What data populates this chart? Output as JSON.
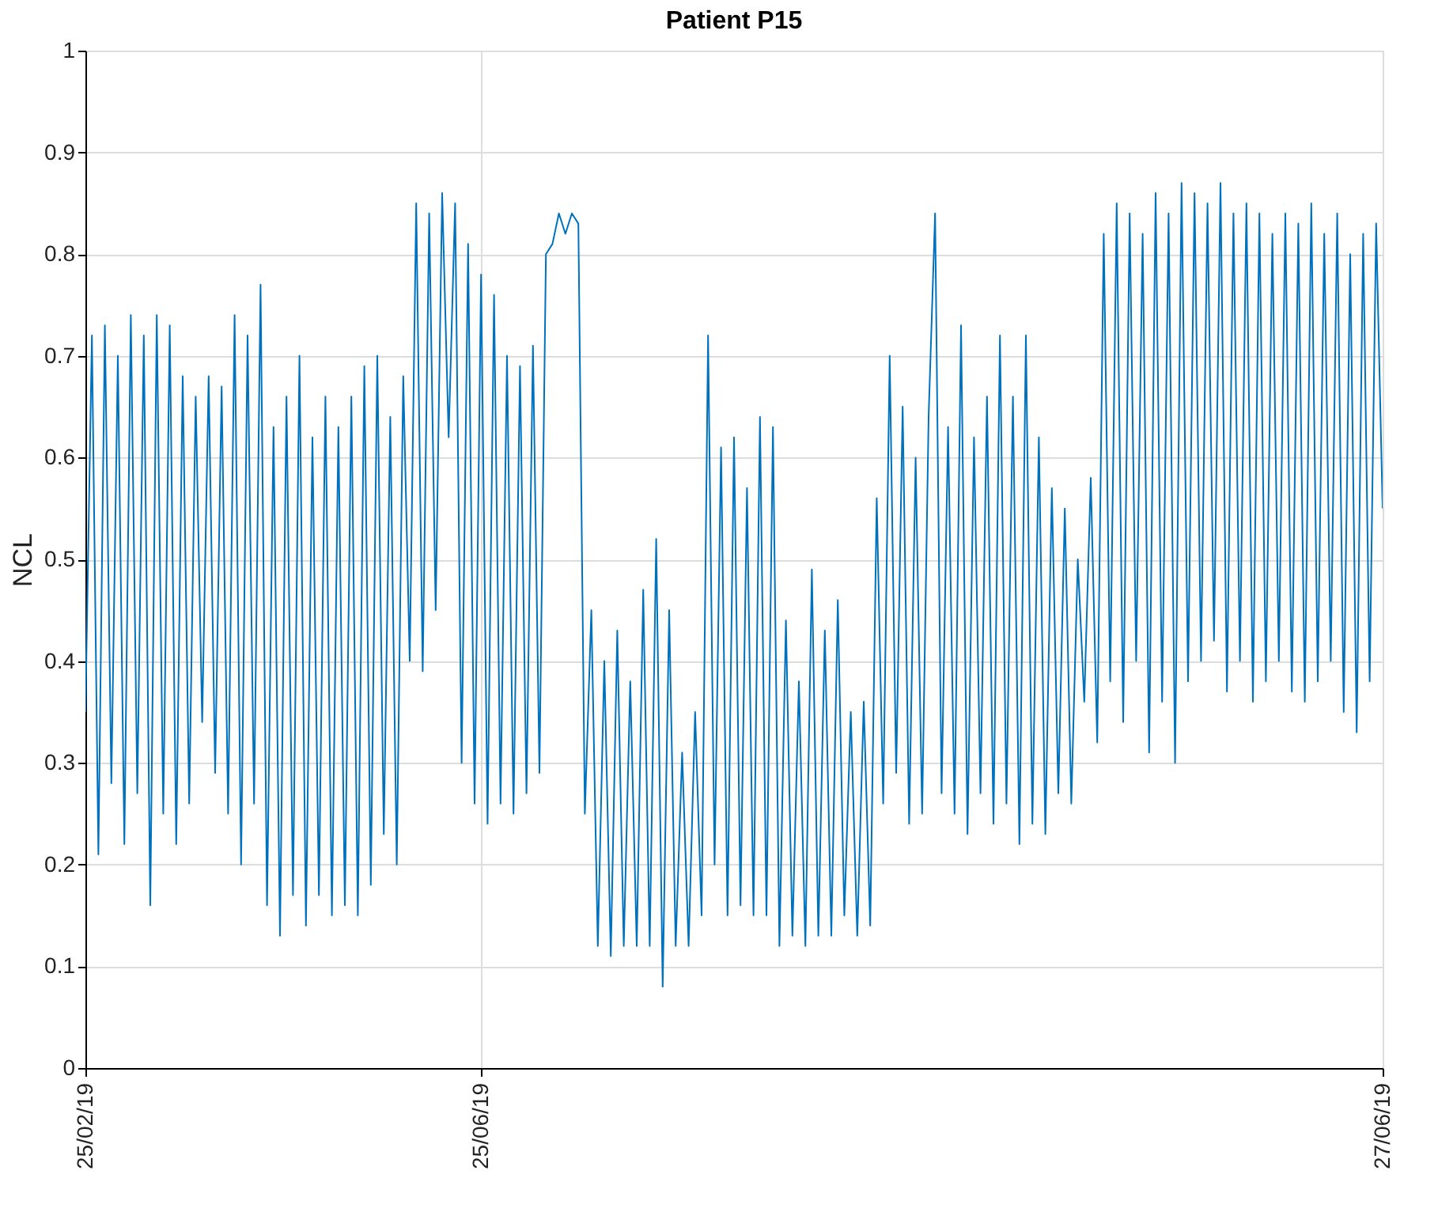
{
  "chart_data": {
    "type": "line",
    "title": "Patient P15",
    "ylabel": "NCL",
    "ylim": [
      0,
      1
    ],
    "yticks": [
      {
        "value": 0,
        "label": "0"
      },
      0.1,
      0.2,
      0.3,
      0.4,
      0.5,
      0.6,
      0.7,
      0.8,
      0.9,
      {
        "value": 1,
        "label": "1"
      }
    ],
    "grid": true,
    "marker": "none",
    "line_style": "solid",
    "categories": [
      "25/02/19",
      null,
      null,
      null,
      null,
      null,
      null,
      null,
      null,
      null,
      null,
      null,
      null,
      null,
      null,
      null,
      null,
      null,
      null,
      null,
      null,
      null,
      null,
      null,
      null,
      null,
      null,
      null,
      null,
      null,
      null,
      null,
      null,
      null,
      null,
      null,
      null,
      null,
      null,
      null,
      null,
      null,
      null,
      null,
      null,
      null,
      null,
      null,
      null,
      null,
      null,
      null,
      null,
      null,
      null,
      null,
      null,
      null,
      null,
      null,
      null,
      "25/06/19",
      null,
      null,
      null,
      null,
      null,
      null,
      null,
      null,
      null,
      null,
      null,
      null,
      null,
      null,
      null,
      null,
      null,
      null,
      null,
      null,
      null,
      null,
      null,
      null,
      null,
      null,
      null,
      null,
      null,
      null,
      null,
      null,
      null,
      null,
      null,
      null,
      null,
      null,
      null,
      null,
      null,
      null,
      null,
      null,
      null,
      null,
      null,
      null,
      null,
      null,
      null,
      null,
      null,
      null,
      null,
      null,
      null,
      null,
      null,
      null,
      null,
      null,
      null,
      null,
      null,
      null,
      null,
      null,
      null,
      null,
      null,
      null,
      null,
      null,
      null,
      null,
      null,
      null,
      null,
      null,
      null,
      null,
      null,
      null,
      null,
      null,
      null,
      null,
      null,
      null,
      null,
      null,
      null,
      null,
      null,
      null,
      null,
      null,
      null,
      null,
      null,
      null,
      null,
      null,
      null,
      null,
      null,
      null,
      null,
      null,
      null,
      null,
      null,
      null,
      null,
      null,
      null,
      null,
      null,
      null,
      null,
      null,
      null,
      null,
      null,
      null,
      null,
      null,
      null,
      null,
      null,
      null,
      null,
      null,
      null,
      null,
      null,
      null,
      "27/06/19"
    ],
    "series": [
      {
        "color": "#0072bd",
        "values": [
          0.35,
          0.72,
          0.21,
          0.73,
          0.28,
          0.7,
          0.22,
          0.74,
          0.27,
          0.72,
          0.16,
          0.74,
          0.25,
          0.73,
          0.22,
          0.68,
          0.26,
          0.66,
          0.34,
          0.68,
          0.29,
          0.67,
          0.25,
          0.74,
          0.2,
          0.72,
          0.26,
          0.77,
          0.16,
          0.63,
          0.13,
          0.66,
          0.17,
          0.7,
          0.14,
          0.62,
          0.17,
          0.66,
          0.15,
          0.63,
          0.16,
          0.66,
          0.15,
          0.69,
          0.18,
          0.7,
          0.23,
          0.64,
          0.2,
          0.68,
          0.4,
          0.85,
          0.39,
          0.84,
          0.45,
          0.86,
          0.62,
          0.85,
          0.3,
          0.81,
          0.26,
          0.78,
          0.24,
          0.76,
          0.26,
          0.7,
          0.25,
          0.69,
          0.27,
          0.71,
          0.29,
          0.8,
          0.81,
          0.84,
          0.82,
          0.84,
          0.83,
          0.25,
          0.45,
          0.12,
          0.4,
          0.11,
          0.43,
          0.12,
          0.38,
          0.12,
          0.47,
          0.12,
          0.52,
          0.08,
          0.45,
          0.12,
          0.31,
          0.12,
          0.35,
          0.15,
          0.72,
          0.2,
          0.61,
          0.15,
          0.62,
          0.16,
          0.57,
          0.15,
          0.64,
          0.15,
          0.63,
          0.12,
          0.44,
          0.13,
          0.38,
          0.12,
          0.49,
          0.13,
          0.43,
          0.13,
          0.46,
          0.15,
          0.35,
          0.13,
          0.36,
          0.14,
          0.56,
          0.26,
          0.7,
          0.29,
          0.65,
          0.24,
          0.6,
          0.25,
          0.64,
          0.84,
          0.27,
          0.63,
          0.25,
          0.73,
          0.23,
          0.62,
          0.27,
          0.66,
          0.24,
          0.72,
          0.26,
          0.66,
          0.22,
          0.72,
          0.24,
          0.62,
          0.23,
          0.57,
          0.27,
          0.55,
          0.26,
          0.5,
          0.36,
          0.58,
          0.32,
          0.82,
          0.38,
          0.85,
          0.34,
          0.84,
          0.4,
          0.82,
          0.31,
          0.86,
          0.36,
          0.84,
          0.3,
          0.87,
          0.38,
          0.86,
          0.4,
          0.85,
          0.42,
          0.87,
          0.37,
          0.84,
          0.4,
          0.85,
          0.36,
          0.84,
          0.38,
          0.82,
          0.4,
          0.84,
          0.37,
          0.83,
          0.36,
          0.85,
          0.38,
          0.82,
          0.4,
          0.84,
          0.35,
          0.8,
          0.33,
          0.82,
          0.38,
          0.83,
          0.55
        ]
      }
    ]
  }
}
